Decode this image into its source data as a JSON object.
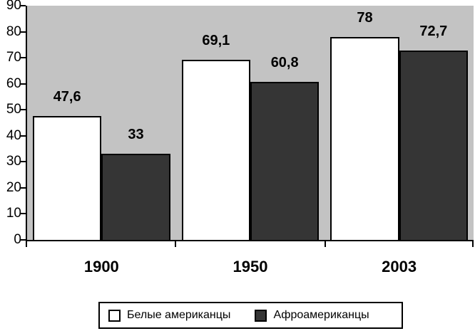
{
  "chart_data": {
    "type": "bar",
    "title": "",
    "xlabel": "",
    "ylabel": "",
    "categories": [
      "1900",
      "1950",
      "2003"
    ],
    "series": [
      {
        "name": "Белые американцы",
        "values": [
          47.6,
          69.1,
          78
        ],
        "labels": [
          "47,6",
          "69,1",
          "78"
        ],
        "color": "#FFFFFF"
      },
      {
        "name": "Афроамериканцы",
        "values": [
          33,
          60.8,
          72.7
        ],
        "labels": [
          "33",
          "60,8",
          "72,7"
        ],
        "color": "#353535"
      }
    ],
    "ylim": [
      0,
      90
    ],
    "y_ticks": [
      0,
      10,
      20,
      30,
      40,
      50,
      60,
      70,
      80,
      90
    ],
    "grid": "off",
    "plot_background": "#C3C3C3",
    "bar_border_color": "#000000",
    "legend_position": "bottom"
  }
}
